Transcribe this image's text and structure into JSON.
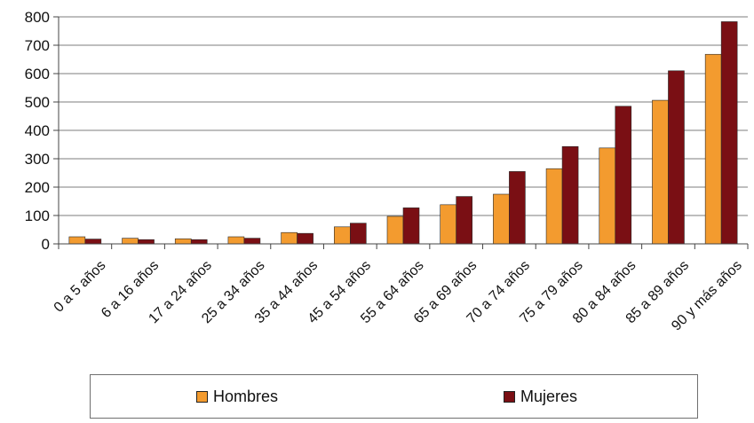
{
  "chart_data": {
    "type": "bar",
    "categories": [
      "0 a 5 años",
      "6 a 16 años",
      "17 a 24 años",
      "25 a 34 años",
      "35 a 44 años",
      "45 a 54 años",
      "55 a 64 años",
      "65 a 69 años",
      "70 a 74 años",
      "75 a 79 años",
      "80 a 84 años",
      "85 a 89 años",
      "90 y más años"
    ],
    "series": [
      {
        "name": "Hombres",
        "values": [
          25,
          20,
          18,
          25,
          40,
          60,
          97,
          138,
          175,
          265,
          338,
          506,
          668
        ]
      },
      {
        "name": "Mujeres",
        "values": [
          17,
          15,
          15,
          20,
          37,
          73,
          127,
          167,
          255,
          343,
          485,
          610,
          783
        ]
      }
    ],
    "colors": {
      "Hombres": "#f39b2f",
      "Mujeres": "#7a0f14"
    },
    "ylim": [
      0,
      800
    ],
    "yticks": [
      "0",
      "100",
      "200",
      "300",
      "400",
      "500",
      "600",
      "700",
      "800"
    ],
    "grid": true,
    "legend_position": "bottom",
    "title": "",
    "xlabel": "",
    "ylabel": ""
  }
}
